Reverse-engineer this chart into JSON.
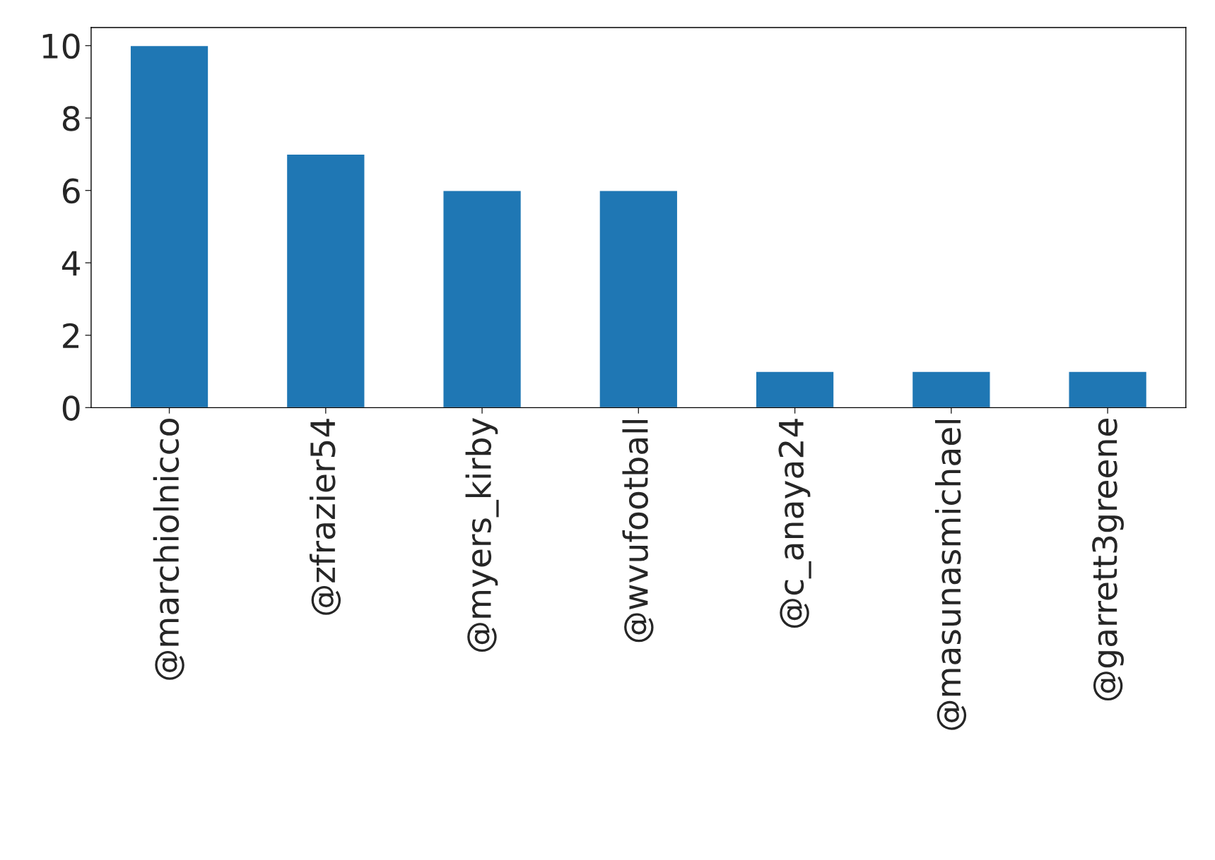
{
  "chart_data": {
    "type": "bar",
    "categories": [
      "@marchiolnicco",
      "@zfrazier54",
      "@myers_kirby",
      "@wvufootball",
      "@c_anaya24",
      "@masunasmichael",
      "@garrett3greene"
    ],
    "values": [
      10,
      7,
      6,
      6,
      1,
      1,
      1
    ],
    "color": "#1f77b4",
    "ylim": [
      0,
      10.5
    ],
    "yticks": [
      0,
      2,
      4,
      6,
      8,
      10
    ],
    "grid": false,
    "legend": false
  }
}
